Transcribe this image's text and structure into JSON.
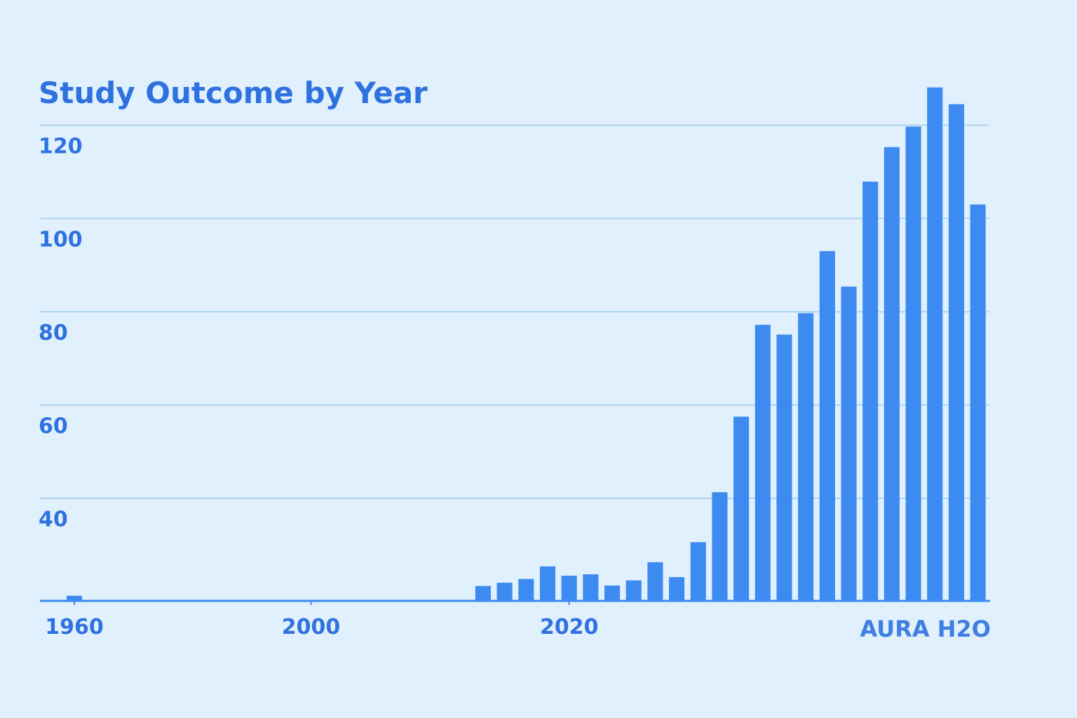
{
  "chart_data": {
    "type": "bar",
    "title": "Study Outcome by Year",
    "annotation": "AURA H2O",
    "categories": [
      null,
      "1960",
      null,
      null,
      null,
      null,
      null,
      null,
      null,
      null,
      null,
      null,
      "2000",
      null,
      null,
      null,
      null,
      null,
      null,
      null,
      null,
      null,
      null,
      null,
      "2020",
      null,
      null,
      null,
      null,
      null,
      null,
      null,
      null,
      null,
      null,
      null,
      null,
      null,
      null,
      null,
      null,
      null,
      null,
      null
    ],
    "values": [
      null,
      19.1,
      null,
      null,
      null,
      null,
      null,
      null,
      null,
      null,
      null,
      null,
      null,
      null,
      null,
      null,
      null,
      null,
      null,
      null,
      21.2,
      21.9,
      22.7,
      25.4,
      23.4,
      23.7,
      21.3,
      22.4,
      26.3,
      23.1,
      30.6,
      41.3,
      57.5,
      77.2,
      75.1,
      79.7,
      93.0,
      85.4,
      107.9,
      115.3,
      119.7,
      128.1,
      124.5,
      103.0
    ],
    "color": "#3d8bf0",
    "ylim": [
      18,
      130
    ],
    "yticks": [
      40,
      60,
      80,
      100,
      120
    ],
    "grid": true
  }
}
